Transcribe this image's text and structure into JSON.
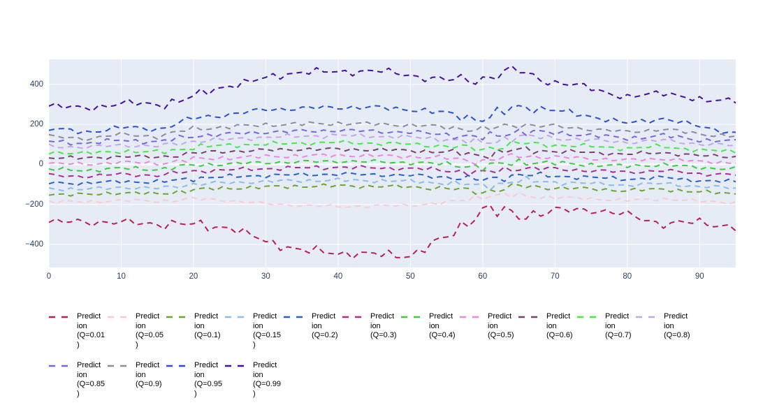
{
  "style": {
    "page_background": "#ffffff",
    "plot_background": "#E5ECF6",
    "grid_color": "#ffffff",
    "tick_label_color": "#2a3f5f",
    "legend_text_color": "#000000"
  },
  "chart_data": {
    "type": "line",
    "title": "",
    "xlabel": "",
    "ylabel": "",
    "grid": true,
    "legend_position": "bottom-horizontal",
    "line_style": "dashed",
    "xlim": [
      0,
      95
    ],
    "ylim": [
      -515,
      525
    ],
    "x_ticks": [
      0,
      10,
      20,
      30,
      40,
      50,
      60,
      70,
      80,
      90
    ],
    "x_tick_labels": [
      "0",
      "10",
      "20",
      "30",
      "40",
      "50",
      "60",
      "70",
      "80",
      "90"
    ],
    "y_ticks": [
      -400,
      -200,
      0,
      200,
      400
    ],
    "y_tick_labels": [
      "−400",
      "−200",
      "0",
      "200",
      "400"
    ],
    "keypoint_x": [
      0,
      5,
      10,
      15,
      20,
      25,
      30,
      35,
      40,
      45,
      50,
      55,
      60,
      65,
      70,
      75,
      80,
      85,
      90,
      95
    ],
    "series": [
      {
        "name": "Prediction (Q=0.01)",
        "legend_lines": [
          "Predict",
          "ion",
          "(Q=0.01",
          ")"
        ],
        "color": "#C01D52",
        "noise_amplitude": 26,
        "keypoints": [
          -290,
          -286,
          -291,
          -296,
          -302,
          -315,
          -385,
          -430,
          -442,
          -450,
          -455,
          -365,
          -225,
          -255,
          -232,
          -226,
          -252,
          -298,
          -288,
          -315
        ]
      },
      {
        "name": "Prediction (Q=0.05)",
        "legend_lines": [
          "Predict",
          "ion",
          "(Q=0.05",
          ")"
        ],
        "color": "#F9CBD2",
        "noise_amplitude": 10,
        "keypoints": [
          -185,
          -188,
          -179,
          -185,
          -172,
          -180,
          -196,
          -206,
          -211,
          -208,
          -204,
          -193,
          -158,
          -155,
          -165,
          -172,
          -180,
          -172,
          -185,
          -190
        ]
      },
      {
        "name": "Prediction (Q=0.1)",
        "legend_lines": [
          "Predict",
          "ion",
          "(Q=0.1)"
        ],
        "color": "#6FA42D",
        "noise_amplitude": 12,
        "keypoints": [
          -148,
          -152,
          -141,
          -148,
          -127,
          -119,
          -113,
          -109,
          -107,
          -109,
          -113,
          -121,
          -137,
          -109,
          -117,
          -123,
          -131,
          -123,
          -139,
          -145
        ]
      },
      {
        "name": "Prediction (Q=0.15)",
        "legend_lines": [
          "Predict",
          "ion",
          "(Q=0.15",
          ")"
        ],
        "color": "#89BDEC",
        "noise_amplitude": 12,
        "keypoints": [
          -120,
          -125,
          -114,
          -120,
          -99,
          -91,
          -85,
          -81,
          -79,
          -81,
          -85,
          -93,
          -109,
          -81,
          -89,
          -95,
          -104,
          -95,
          -111,
          -117
        ]
      },
      {
        "name": "Prediction (Q=0.2)",
        "legend_lines": [
          "Predict",
          "ion",
          "(Q=0.2)"
        ],
        "color": "#2A5FD0",
        "noise_amplitude": 12,
        "keypoints": [
          -90,
          -95,
          -84,
          -90,
          -69,
          -61,
          -55,
          -51,
          -49,
          -51,
          -55,
          -63,
          -79,
          -51,
          -59,
          -65,
          -74,
          -65,
          -81,
          -87
        ]
      },
      {
        "name": "Prediction (Q=0.3)",
        "legend_lines": [
          "Predict",
          "ion",
          "(Q=0.3)"
        ],
        "color": "#AB2D92",
        "noise_amplitude": 12,
        "keypoints": [
          -55,
          -60,
          -49,
          -55,
          -34,
          -27,
          -21,
          -17,
          -14,
          -17,
          -21,
          -29,
          -44,
          -17,
          -24,
          -31,
          -39,
          -31,
          -47,
          -51
        ]
      },
      {
        "name": "Prediction (Q=0.4)",
        "legend_lines": [
          "Predict",
          "ion",
          "(Q=0.4)"
        ],
        "color": "#3ACC3A",
        "noise_amplitude": 12,
        "keypoints": [
          -25,
          -30,
          -19,
          -25,
          -4,
          3,
          9,
          13,
          16,
          13,
          9,
          1,
          -14,
          13,
          6,
          -1,
          -9,
          -1,
          -17,
          -21
        ]
      },
      {
        "name": "Prediction (Q=0.5)",
        "legend_lines": [
          "Predict",
          "ion",
          "(Q=0.5)"
        ],
        "color": "#EE85DE",
        "noise_amplitude": 12,
        "keypoints": [
          6,
          0,
          11,
          5,
          26,
          33,
          39,
          43,
          46,
          43,
          39,
          31,
          16,
          43,
          36,
          29,
          21,
          29,
          13,
          9
        ]
      },
      {
        "name": "Prediction (Q=0.6)",
        "legend_lines": [
          "Predict",
          "ion",
          "(Q=0.6)"
        ],
        "color": "#7C3F70",
        "noise_amplitude": 12,
        "keypoints": [
          36,
          30,
          41,
          35,
          56,
          66,
          71,
          76,
          76,
          73,
          69,
          61,
          46,
          73,
          66,
          59,
          51,
          59,
          43,
          39
        ]
      },
      {
        "name": "Prediction (Q=0.7)",
        "legend_lines": [
          "Predict",
          "ion",
          "(Q=0.7)"
        ],
        "color": "#44EB44",
        "noise_amplitude": 13,
        "keypoints": [
          62,
          55,
          66,
          60,
          86,
          96,
          101,
          106,
          110,
          106,
          101,
          91,
          76,
          106,
          96,
          90,
          80,
          90,
          70,
          66
        ]
      },
      {
        "name": "Prediction (Q=0.8)",
        "legend_lines": [
          "Predict",
          "ion",
          "(Q=0.8)"
        ],
        "color": "#C6A5E9",
        "noise_amplitude": 13,
        "keypoints": [
          92,
          85,
          97,
          90,
          116,
          126,
          136,
          141,
          145,
          141,
          136,
          126,
          106,
          141,
          131,
          121,
          111,
          121,
          101,
          95
        ]
      },
      {
        "name": "Prediction (Q=0.85)",
        "legend_lines": [
          "Predict",
          "ion",
          "(Q=0.85",
          ")"
        ],
        "color": "#7666E2",
        "noise_amplitude": 13,
        "keypoints": [
          115,
          105,
          122,
          112,
          142,
          152,
          162,
          166,
          170,
          166,
          160,
          150,
          132,
          166,
          156,
          146,
          130,
          145,
          122,
          115
        ]
      },
      {
        "name": "Prediction (Q=0.9)",
        "legend_lines": [
          "Predict",
          "ion",
          "(Q=0.9)"
        ],
        "color": "#8C8C9C",
        "noise_amplitude": 13,
        "keypoints": [
          140,
          128,
          150,
          140,
          178,
          188,
          198,
          202,
          205,
          202,
          196,
          186,
          172,
          200,
          190,
          176,
          162,
          176,
          152,
          140
        ]
      },
      {
        "name": "Prediction (Q=0.95)",
        "legend_lines": [
          "Predict",
          "ion",
          "(Q=0.95",
          ")"
        ],
        "color": "#2B50D6",
        "noise_amplitude": 16,
        "keypoints": [
          180,
          160,
          185,
          175,
          230,
          250,
          275,
          280,
          285,
          285,
          275,
          255,
          225,
          290,
          270,
          240,
          205,
          230,
          190,
          155
        ]
      },
      {
        "name": "Prediction (Q=0.99)",
        "legend_lines": [
          "Predict",
          "ion",
          "(Q=0.99",
          ")"
        ],
        "color": "#480DA6",
        "noise_amplitude": 22,
        "keypoints": [
          300,
          275,
          310,
          295,
          340,
          395,
          430,
          465,
          460,
          470,
          445,
          420,
          430,
          470,
          405,
          385,
          330,
          365,
          315,
          330
        ]
      }
    ]
  }
}
